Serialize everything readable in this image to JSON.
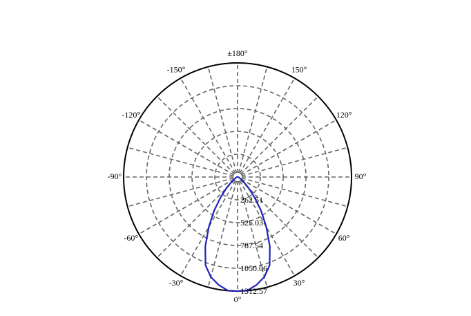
{
  "chart_data": {
    "type": "polar",
    "title": "",
    "angle_labels": [
      {
        "deg": 0,
        "text": "0°"
      },
      {
        "deg": 30,
        "text": "30°"
      },
      {
        "deg": 60,
        "text": "60°"
      },
      {
        "deg": 90,
        "text": "90°"
      },
      {
        "deg": 120,
        "text": "120°"
      },
      {
        "deg": 150,
        "text": "150°"
      },
      {
        "deg": 180,
        "text": "±180°"
      },
      {
        "deg": -150,
        "text": "-150°"
      },
      {
        "deg": -120,
        "text": "-120°"
      },
      {
        "deg": -90,
        "text": "-90°"
      },
      {
        "deg": -60,
        "text": "-60°"
      },
      {
        "deg": -30,
        "text": "-30°"
      }
    ],
    "radial_max": 1312.57,
    "radial_ticks": [
      {
        "value": 262.51,
        "text": "262.51"
      },
      {
        "value": 525.03,
        "text": "525.03"
      },
      {
        "value": 787.54,
        "text": "787.54"
      },
      {
        "value": 1050.06,
        "text": "1050.06"
      },
      {
        "value": 1312.57,
        "text": "1312.57"
      }
    ],
    "spoke_step_deg": 15,
    "grid": true,
    "series": [
      {
        "color": "#2222bb",
        "points": [
          {
            "angle": 0,
            "r": 1312.57
          },
          {
            "angle": 5,
            "r": 1310
          },
          {
            "angle": 10,
            "r": 1260
          },
          {
            "angle": 15,
            "r": 1190
          },
          {
            "angle": 20,
            "r": 1080
          },
          {
            "angle": 25,
            "r": 880
          },
          {
            "angle": 30,
            "r": 660
          },
          {
            "angle": 35,
            "r": 470
          },
          {
            "angle": 40,
            "r": 300
          },
          {
            "angle": 45,
            "r": 180
          },
          {
            "angle": 50,
            "r": 100
          },
          {
            "angle": 55,
            "r": 60
          },
          {
            "angle": 60,
            "r": 35
          },
          {
            "angle": 70,
            "r": 18
          },
          {
            "angle": 80,
            "r": 10
          },
          {
            "angle": 90,
            "r": 5
          }
        ]
      }
    ]
  }
}
